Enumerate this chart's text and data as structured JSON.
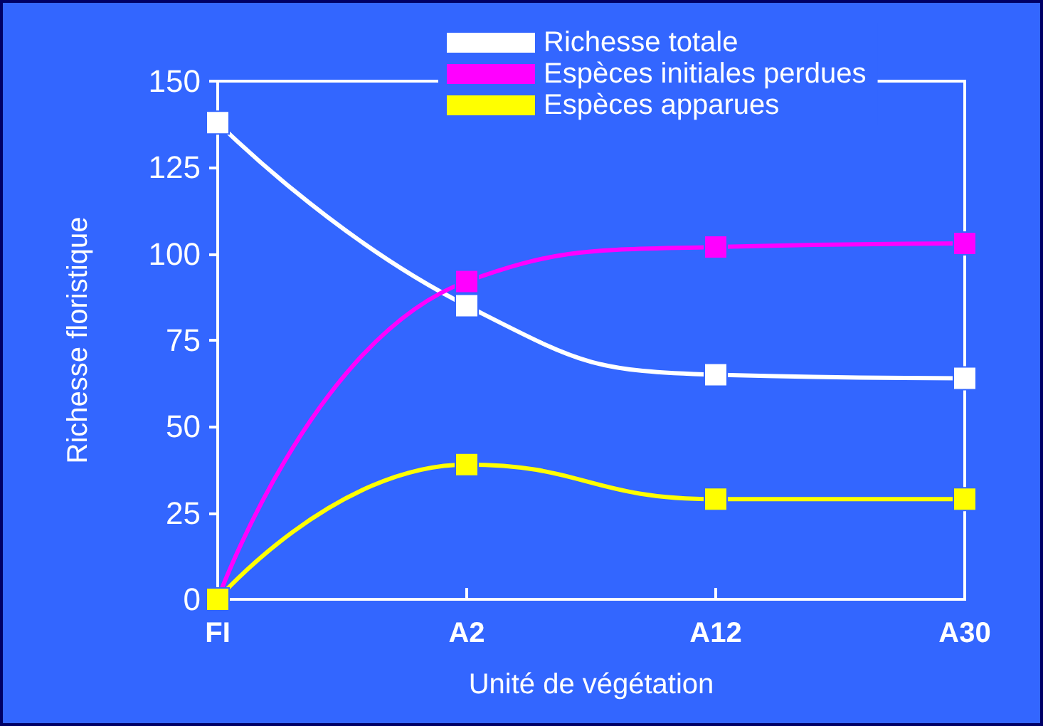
{
  "chart_data": {
    "type": "line",
    "xlabel": "Unité de végétation",
    "ylabel": "Richesse floristique",
    "categories": [
      "FI",
      "A2",
      "A12",
      "A30"
    ],
    "ylim": [
      0,
      150
    ],
    "yticks": [
      0,
      25,
      50,
      75,
      100,
      125,
      150
    ],
    "series": [
      {
        "name": "Richesse totale",
        "color": "#ffffff",
        "values": [
          138,
          85,
          65,
          64
        ]
      },
      {
        "name": "Espèces initiales perdues",
        "color": "#ff00ff",
        "values": [
          0,
          92,
          102,
          103
        ]
      },
      {
        "name": "Espèces apparues",
        "color": "#ffff00",
        "values": [
          0,
          39,
          29,
          29
        ]
      }
    ],
    "marker": "square",
    "line_style": "solid",
    "grid": false,
    "legend": "top right"
  }
}
